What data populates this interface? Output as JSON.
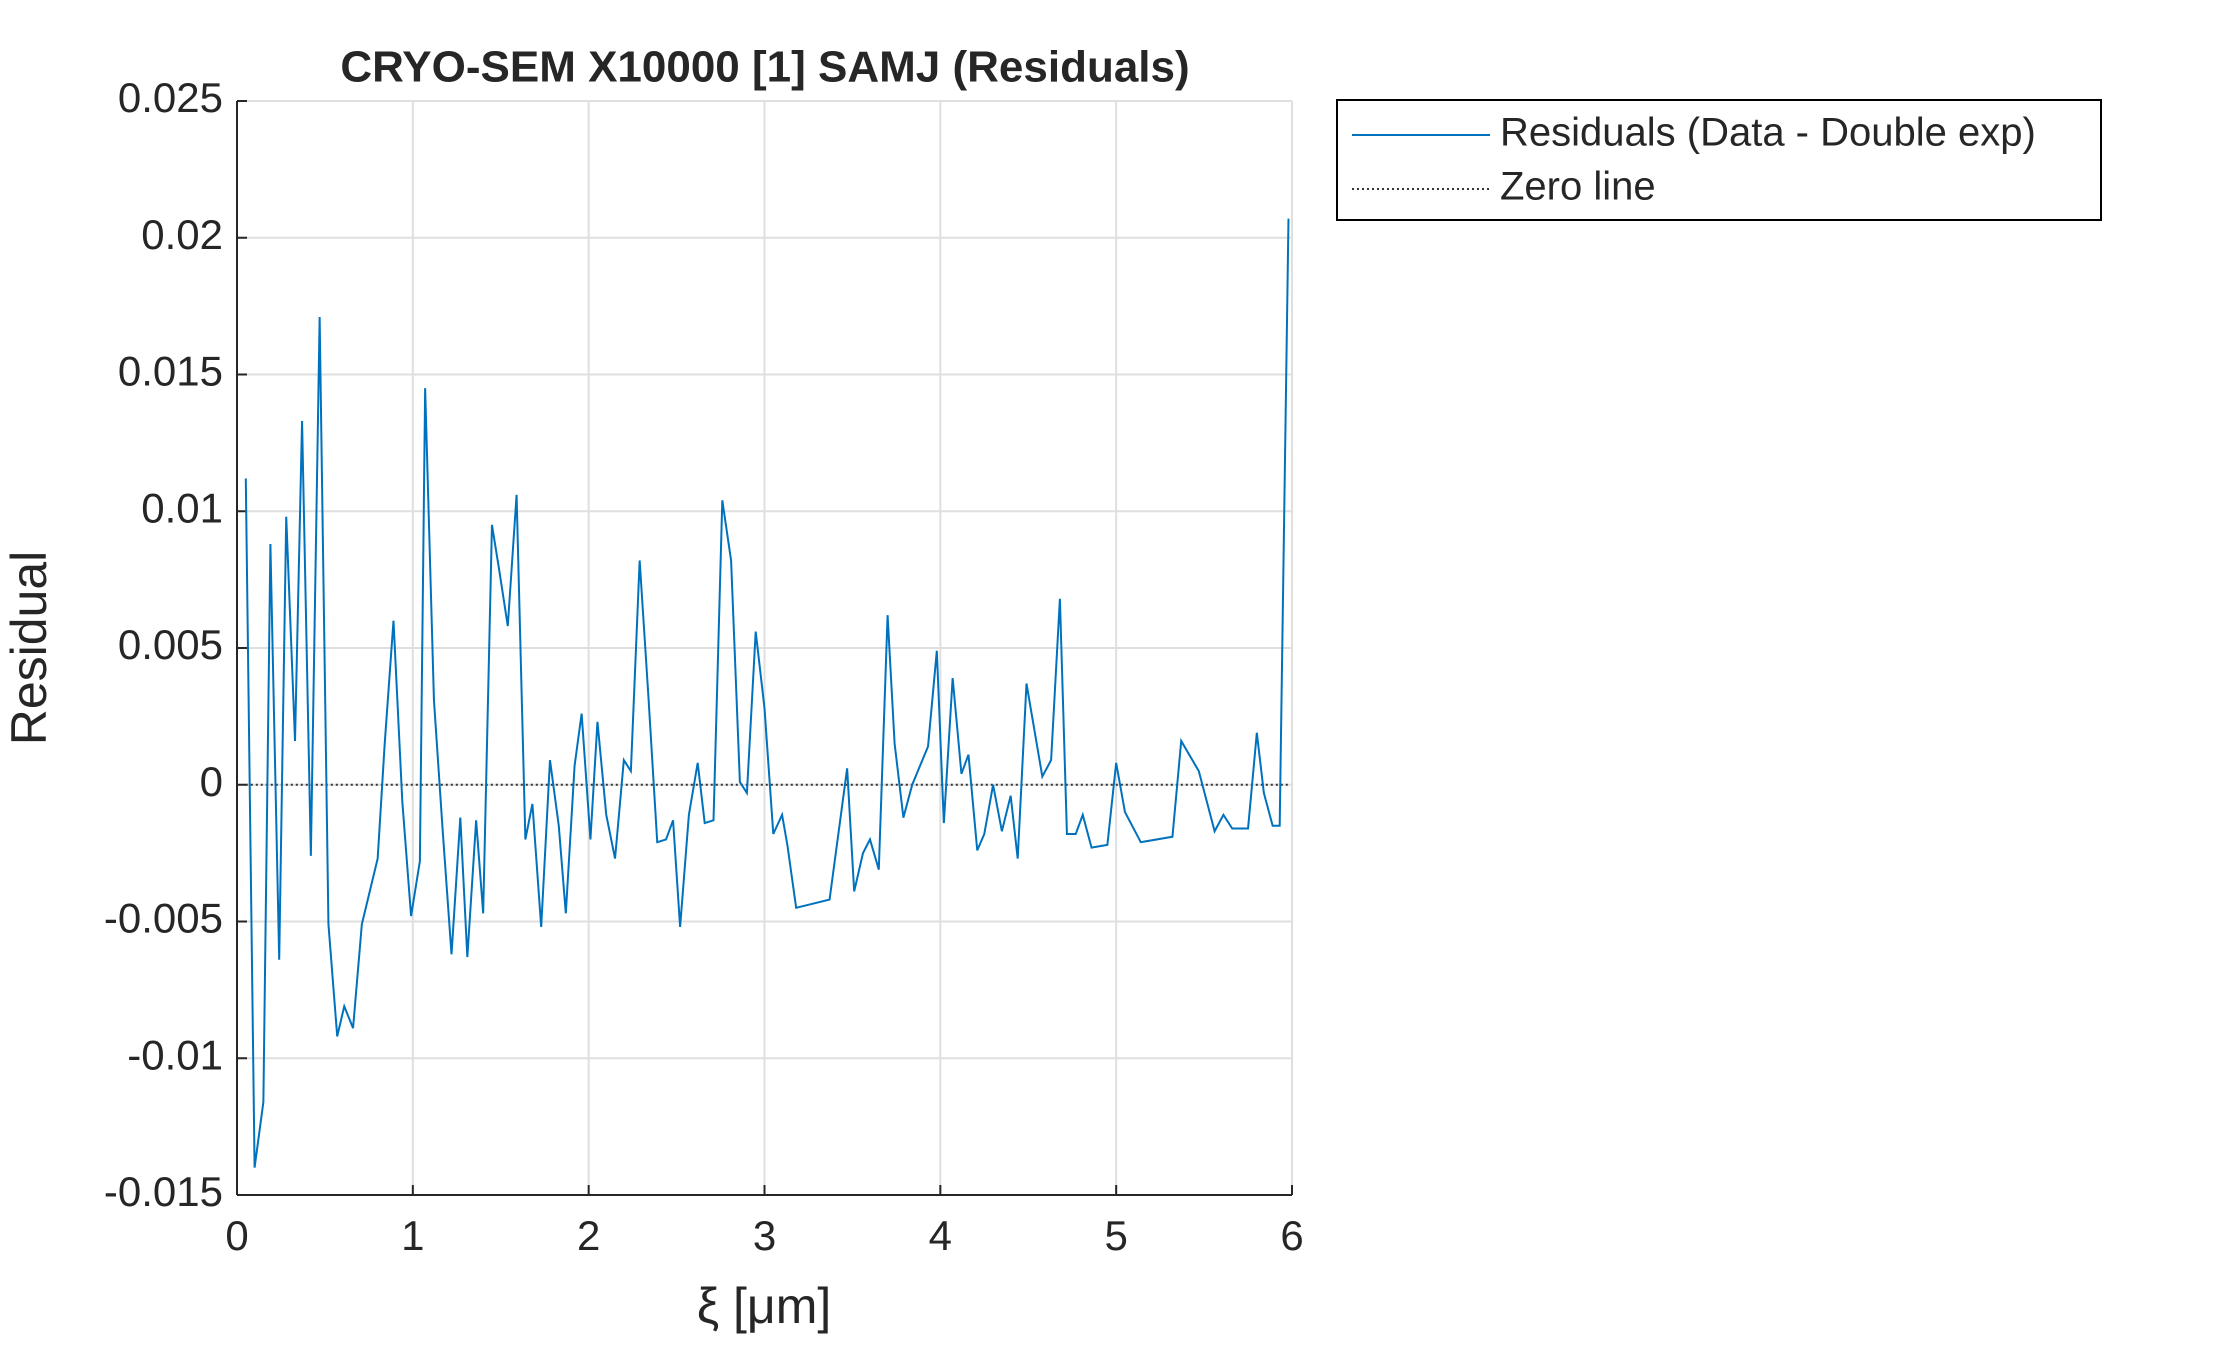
{
  "chart_data": {
    "type": "line",
    "title": "CRYO-SEM X10000 [1] SAMJ (Residuals)",
    "xlabel": "ξ  [μm]",
    "ylabel": "Residual",
    "xlim": [
      0,
      6
    ],
    "xticks": [
      0,
      1,
      2,
      3,
      4,
      5,
      6
    ],
    "ylim": [
      -0.015,
      0.025
    ],
    "yticks": [
      -0.015,
      -0.01,
      -0.005,
      0,
      0.005,
      0.01,
      0.015,
      0.02,
      0.025
    ],
    "grid": true,
    "legend": "outside-top-right",
    "series": [
      {
        "name": "Residuals (Data - Double exp)",
        "color": "#0072bd",
        "style": "solid",
        "x": [
          0.05,
          0.1,
          0.15,
          0.19,
          0.24,
          0.28,
          0.33,
          0.37,
          0.42,
          0.47,
          0.52,
          0.57,
          0.61,
          0.66,
          0.71,
          0.8,
          0.84,
          0.89,
          0.94,
          0.99,
          1.04,
          1.07,
          1.12,
          1.17,
          1.22,
          1.27,
          1.31,
          1.36,
          1.4,
          1.45,
          1.49,
          1.54,
          1.59,
          1.64,
          1.68,
          1.73,
          1.78,
          1.83,
          1.87,
          1.92,
          1.96,
          2.01,
          2.05,
          2.1,
          2.15,
          2.2,
          2.24,
          2.29,
          2.34,
          2.39,
          2.44,
          2.48,
          2.52,
          2.57,
          2.62,
          2.66,
          2.71,
          2.76,
          2.81,
          2.86,
          2.9,
          2.95,
          3.0,
          3.05,
          3.1,
          3.13,
          3.18,
          3.37,
          3.47,
          3.51,
          3.56,
          3.6,
          3.65,
          3.7,
          3.74,
          3.79,
          3.84,
          3.93,
          3.98,
          4.02,
          4.07,
          4.12,
          4.16,
          4.21,
          4.25,
          4.3,
          4.35,
          4.4,
          4.44,
          4.49,
          4.58,
          4.63,
          4.68,
          4.72,
          4.77,
          4.81,
          4.86,
          4.95,
          5.0,
          5.05,
          5.14,
          5.32,
          5.37,
          5.47,
          5.56,
          5.61,
          5.66,
          5.75,
          5.8,
          5.84,
          5.89,
          5.93,
          5.98
        ],
        "values": [
          0.0112,
          -0.014,
          -0.0116,
          0.0088,
          -0.0064,
          0.0098,
          0.0016,
          0.0133,
          -0.0026,
          0.0171,
          -0.0051,
          -0.0092,
          -0.0081,
          -0.0089,
          -0.0051,
          -0.0027,
          0.0015,
          0.006,
          -0.0006,
          -0.0048,
          -0.0028,
          0.0145,
          0.0031,
          -0.0017,
          -0.0062,
          -0.0012,
          -0.0063,
          -0.0013,
          -0.0047,
          0.0095,
          0.0079,
          0.0058,
          0.0106,
          -0.002,
          -0.0007,
          -0.0052,
          0.0009,
          -0.0015,
          -0.0047,
          0.0007,
          0.0026,
          -0.002,
          0.0023,
          -0.0011,
          -0.0027,
          0.0009,
          0.0005,
          0.0082,
          0.0032,
          -0.0021,
          -0.002,
          -0.0013,
          -0.0052,
          -0.0011,
          0.0008,
          -0.0014,
          -0.0013,
          0.0104,
          0.0082,
          0.0001,
          -0.0003,
          0.0056,
          0.0028,
          -0.0018,
          -0.0011,
          -0.0022,
          -0.0045,
          -0.0042,
          0.0006,
          -0.0039,
          -0.0025,
          -0.002,
          -0.0031,
          0.0062,
          0.0015,
          -0.0012,
          0.0,
          0.0014,
          0.0049,
          -0.0014,
          0.0039,
          0.0004,
          0.0011,
          -0.0024,
          -0.0018,
          0.0,
          -0.0017,
          -0.0004,
          -0.0027,
          0.0037,
          0.0003,
          0.0009,
          0.0068,
          -0.0018,
          -0.0018,
          -0.0011,
          -0.0023,
          -0.0022,
          0.0008,
          -0.001,
          -0.0021,
          -0.0019,
          0.0016,
          0.0005,
          -0.0017,
          -0.0011,
          -0.0016,
          -0.0016,
          0.0019,
          -0.0003,
          -0.0015,
          -0.0015,
          0.0207
        ]
      },
      {
        "name": "Zero line",
        "color": "#333333",
        "style": "dotted",
        "x": [
          0.05,
          5.98
        ],
        "values": [
          0,
          0
        ]
      }
    ]
  }
}
